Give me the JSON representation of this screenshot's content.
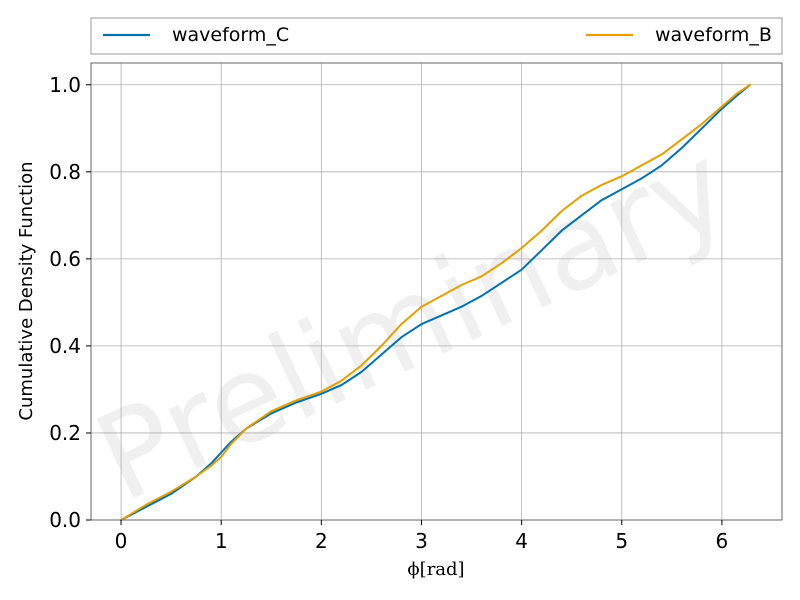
{
  "watermark": "Preliminary",
  "chart_data": {
    "type": "line",
    "title": "",
    "xlabel": "ϕ[rad]",
    "ylabel": "Cumulative Density Function",
    "xlim": [
      -0.3,
      6.6
    ],
    "ylim": [
      0,
      1.05
    ],
    "x_ticks": [
      0,
      1,
      2,
      3,
      4,
      5,
      6
    ],
    "y_ticks": [
      0.0,
      0.2,
      0.4,
      0.6,
      0.8,
      1.0
    ],
    "x_tick_labels": [
      "0",
      "1",
      "2",
      "3",
      "4",
      "5",
      "6"
    ],
    "y_tick_labels": [
      "0.0",
      "0.2",
      "0.4",
      "0.6",
      "0.8",
      "1.0"
    ],
    "grid": true,
    "legend_position": "top, above plot",
    "series": [
      {
        "name": "waveform_C",
        "color": "#0072B2",
        "x": [
          0,
          0.25,
          0.5,
          0.75,
          0.9,
          1.0,
          1.1,
          1.25,
          1.5,
          1.75,
          2.0,
          2.2,
          2.4,
          2.6,
          2.8,
          3.0,
          3.2,
          3.4,
          3.6,
          3.8,
          4.0,
          4.2,
          4.4,
          4.6,
          4.8,
          5.0,
          5.2,
          5.4,
          5.6,
          5.8,
          6.0,
          6.15,
          6.28
        ],
        "y": [
          0.0,
          0.03,
          0.06,
          0.1,
          0.13,
          0.155,
          0.18,
          0.21,
          0.245,
          0.27,
          0.29,
          0.31,
          0.34,
          0.38,
          0.42,
          0.45,
          0.47,
          0.49,
          0.515,
          0.545,
          0.575,
          0.62,
          0.665,
          0.7,
          0.735,
          0.76,
          0.785,
          0.815,
          0.855,
          0.9,
          0.945,
          0.975,
          1.0
        ]
      },
      {
        "name": "waveform_B",
        "color": "#E69F00",
        "x": [
          0,
          0.25,
          0.5,
          0.75,
          0.9,
          1.0,
          1.1,
          1.25,
          1.5,
          1.75,
          2.0,
          2.2,
          2.4,
          2.6,
          2.8,
          3.0,
          3.2,
          3.4,
          3.6,
          3.8,
          4.0,
          4.2,
          4.4,
          4.6,
          4.8,
          5.0,
          5.2,
          5.4,
          5.6,
          5.8,
          6.0,
          6.15,
          6.28
        ],
        "y": [
          0.0,
          0.035,
          0.065,
          0.1,
          0.125,
          0.145,
          0.175,
          0.21,
          0.25,
          0.275,
          0.295,
          0.32,
          0.355,
          0.4,
          0.45,
          0.49,
          0.515,
          0.54,
          0.56,
          0.59,
          0.625,
          0.665,
          0.71,
          0.745,
          0.77,
          0.79,
          0.815,
          0.84,
          0.875,
          0.91,
          0.95,
          0.98,
          1.0
        ]
      }
    ]
  }
}
